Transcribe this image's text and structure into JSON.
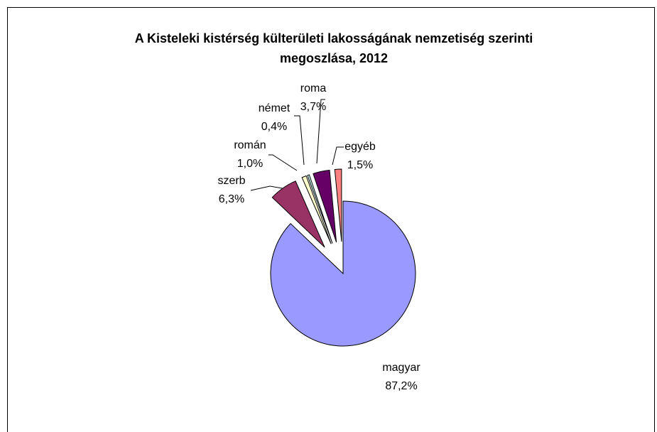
{
  "chart_data": {
    "type": "pie",
    "title": "A Kisteleki kistérség külterületi lakosságának nemzetiség szerinti megoszlása, 2012",
    "categories": [
      "magyar",
      "szerb",
      "román",
      "német",
      "roma",
      "egyéb"
    ],
    "values": [
      87.2,
      6.3,
      1.0,
      0.4,
      3.7,
      1.5
    ],
    "value_labels": [
      "87,2%",
      "6,3%",
      "1,0%",
      "0,4%",
      "3,7%",
      "1,5%"
    ],
    "colors": [
      "#9999ff",
      "#993366",
      "#ffffcc",
      "#ccffff",
      "#660066",
      "#ff8080"
    ]
  }
}
